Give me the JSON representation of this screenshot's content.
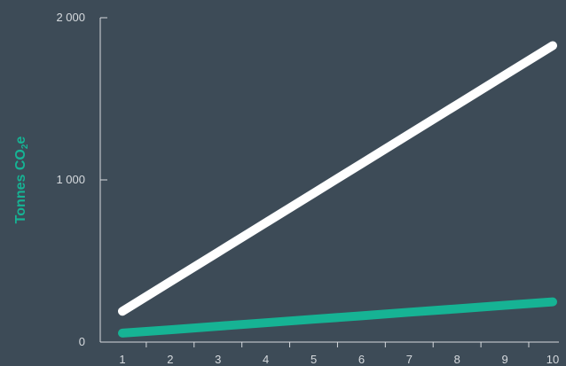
{
  "chart_data": {
    "type": "line",
    "title": "",
    "xlabel": "",
    "ylabel": {
      "main": "Tonnes CO",
      "subscript": "2",
      "suffix": "e"
    },
    "x": [
      1,
      2,
      3,
      4,
      5,
      6,
      7,
      8,
      9,
      10
    ],
    "xticks": [
      "1",
      "2",
      "3",
      "4",
      "5",
      "6",
      "7",
      "8",
      "9",
      "10"
    ],
    "yticks": [
      {
        "value": 0,
        "label": "0"
      },
      {
        "value": 1000,
        "label": "1 000"
      },
      {
        "value": 2000,
        "label": "2 000"
      }
    ],
    "ylim": [
      0,
      2000
    ],
    "xlim": [
      1,
      10
    ],
    "grid": false,
    "series": [
      {
        "values": [
          190,
          372,
          554,
          736,
          918,
          1100,
          1282,
          1464,
          1646,
          1828
        ],
        "color": "#ffffff"
      },
      {
        "values": [
          55,
          76,
          98,
          119,
          141,
          162,
          184,
          205,
          227,
          248
        ],
        "color": "#16b394"
      }
    ]
  }
}
